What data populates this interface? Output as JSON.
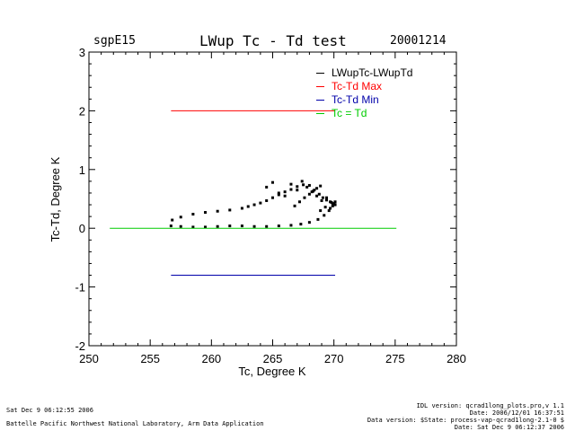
{
  "header": {
    "site": "sgpE15",
    "title": "LWup Tc - Td test",
    "date": "20001214"
  },
  "chart_data": {
    "type": "scatter",
    "xlabel": "Tc, Degree K",
    "ylabel": "Tc-Td, Degree K",
    "xlim": [
      250,
      280
    ],
    "ylim": [
      -2,
      3
    ],
    "xticks": [
      250,
      255,
      260,
      265,
      270,
      275,
      280
    ],
    "yticks": [
      -2,
      -1,
      0,
      1,
      2,
      3
    ],
    "legend": [
      "LWupTc-LWupTd",
      "Tc-Td Max",
      "Tc-Td Min",
      "Tc = Td"
    ],
    "series": [
      {
        "name": "LWupTc-LWupTd",
        "color": "#000000",
        "kind": "points",
        "x": [
          256.7,
          257.5,
          258.5,
          259.5,
          260.5,
          261.5,
          262.5,
          263.5,
          264.5,
          265.5,
          266.5,
          267.3,
          268.0,
          268.7,
          269.2,
          269.6,
          269.9,
          270.1,
          256.8,
          257.5,
          258.5,
          259.5,
          260.5,
          261.5,
          262.5,
          263.0,
          263.5,
          264.0,
          264.5,
          265.0,
          265.5,
          266.0,
          266.5,
          267.0,
          267.5,
          268.0,
          268.4,
          268.8,
          269.1,
          269.4,
          269.7,
          269.9,
          270.1,
          266.8,
          267.2,
          267.6,
          268.0,
          268.3,
          268.6,
          268.9,
          264.5,
          265.0,
          265.5,
          266.0,
          266.5,
          267.0,
          267.4,
          267.8,
          268.2,
          268.6,
          269.0,
          269.4,
          269.8,
          270.1,
          268.9,
          269.3,
          269.7,
          270.0
        ],
        "y": [
          0.04,
          0.03,
          0.02,
          0.02,
          0.03,
          0.04,
          0.04,
          0.03,
          0.03,
          0.04,
          0.05,
          0.07,
          0.1,
          0.15,
          0.22,
          0.3,
          0.38,
          0.45,
          0.14,
          0.19,
          0.24,
          0.27,
          0.29,
          0.31,
          0.34,
          0.37,
          0.4,
          0.43,
          0.47,
          0.52,
          0.57,
          0.62,
          0.66,
          0.71,
          0.74,
          0.73,
          0.65,
          0.58,
          0.52,
          0.48,
          0.45,
          0.42,
          0.4,
          0.38,
          0.45,
          0.52,
          0.58,
          0.63,
          0.68,
          0.72,
          0.7,
          0.78,
          0.6,
          0.55,
          0.75,
          0.65,
          0.8,
          0.7,
          0.62,
          0.55,
          0.47,
          0.52,
          0.44,
          0.4,
          0.3,
          0.36,
          0.34,
          0.42
        ]
      },
      {
        "name": "Tc-Td Max",
        "color": "#ff0000",
        "kind": "hline",
        "x": [
          256.7,
          270.1
        ],
        "y": 2.0
      },
      {
        "name": "Tc-Td Min",
        "color": "#0000aa",
        "kind": "hline",
        "x": [
          256.7,
          270.1
        ],
        "y": -0.8
      },
      {
        "name": "Tc = Td",
        "color": "#00cc00",
        "kind": "hline",
        "x": [
          251.7,
          275.1
        ],
        "y": 0.0
      }
    ]
  },
  "footer": {
    "timestamp": "Sat Dec  9 06:12:55 2006",
    "lab": "Battelle Pacific Northwest National Laboratory, Arm Data Application",
    "idl": "IDL version: qcrad1long_plots.pro,v 1.1",
    "date_line": "Date: 2006/12/01 16:37:51",
    "data_version": "Data version: $State: process-vap-qcrad1long-2.1-0 $",
    "date2": "Date: Sat Dec  9 06:12:37 2006"
  }
}
